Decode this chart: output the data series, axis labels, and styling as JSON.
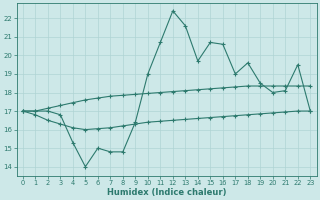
{
  "x": [
    0,
    1,
    2,
    3,
    4,
    5,
    6,
    7,
    8,
    9,
    10,
    11,
    12,
    13,
    14,
    15,
    16,
    17,
    18,
    19,
    20,
    21,
    22,
    23
  ],
  "line_main": [
    17,
    17,
    17,
    16.8,
    15.3,
    14.0,
    15.0,
    14.8,
    14.8,
    16.4,
    19.0,
    20.7,
    22.4,
    21.6,
    19.7,
    20.7,
    20.6,
    19.0,
    19.6,
    18.5,
    18.0,
    18.1,
    19.5,
    17.0
  ],
  "line_upper": [
    17.0,
    17.0,
    17.15,
    17.3,
    17.45,
    17.6,
    17.7,
    17.8,
    17.85,
    17.9,
    17.95,
    18.0,
    18.05,
    18.1,
    18.15,
    18.2,
    18.25,
    18.3,
    18.35,
    18.35,
    18.35,
    18.35,
    18.35,
    18.35
  ],
  "line_lower": [
    17.0,
    16.8,
    16.5,
    16.3,
    16.1,
    16.0,
    16.05,
    16.1,
    16.2,
    16.3,
    16.4,
    16.45,
    16.5,
    16.55,
    16.6,
    16.65,
    16.7,
    16.75,
    16.8,
    16.85,
    16.9,
    16.95,
    17.0,
    17.0
  ],
  "color": "#2d7a6e",
  "bg_color": "#cde8e8",
  "grid_color": "#b0d4d4",
  "xlabel": "Humidex (Indice chaleur)",
  "yticks": [
    14,
    15,
    16,
    17,
    18,
    19,
    20,
    21,
    22
  ],
  "xticks": [
    0,
    1,
    2,
    3,
    4,
    5,
    6,
    7,
    8,
    9,
    10,
    11,
    12,
    13,
    14,
    15,
    16,
    17,
    18,
    19,
    20,
    21,
    22,
    23
  ],
  "ylim": [
    13.5,
    22.8
  ],
  "xlim": [
    -0.5,
    23.5
  ]
}
